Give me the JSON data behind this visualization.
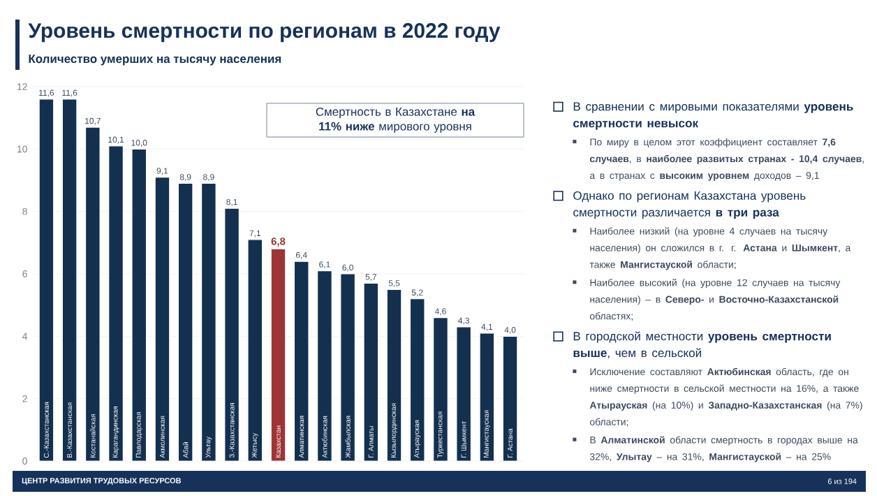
{
  "chart_data": {
    "type": "bar",
    "title": "Уровень смертности по регионам в 2022 году",
    "subtitle": "Количество умерших на тысячу населения",
    "categories": [
      "С.-Казахстанская",
      "В.-Казахстанская",
      "Костанайская",
      "Карагандинская",
      "Павлодарская",
      "Акмолинская",
      "Абай",
      "Ультау",
      "З.-Казахстанская",
      "Жетысу",
      "Казахстан",
      "Алматинская",
      "Актюбинская",
      "Жамбылская",
      "Г. Алматы",
      "Кызылординская",
      "Атырауская",
      "Туркестанская",
      "Г. Шымкент",
      "Мангистауская",
      "Г. Астана"
    ],
    "values": [
      11.6,
      11.6,
      10.7,
      10.1,
      10.0,
      9.1,
      8.9,
      8.9,
      8.1,
      7.1,
      6.8,
      6.4,
      6.1,
      6.0,
      5.7,
      5.5,
      5.2,
      4.6,
      4.3,
      4.1,
      4.0
    ],
    "value_labels": [
      "11,6",
      "11,6",
      "10,7",
      "10,1",
      "10,0",
      "9,1",
      "8,9",
      "8,9",
      "8,1",
      "7,1",
      "6,8",
      "6,4",
      "6,1",
      "6,0",
      "5,7",
      "5,5",
      "5,2",
      "4,6",
      "4,3",
      "4,1",
      "4,0"
    ],
    "colors": [
      "#14304f",
      "#14304f",
      "#14304f",
      "#14304f",
      "#14304f",
      "#14304f",
      "#14304f",
      "#14304f",
      "#14304f",
      "#14304f",
      "#9e3434",
      "#14304f",
      "#14304f",
      "#14304f",
      "#14304f",
      "#14304f",
      "#14304f",
      "#14304f",
      "#14304f",
      "#14304f",
      "#14304f"
    ],
    "ylim": [
      0,
      12
    ],
    "yticks": [
      0,
      2,
      4,
      6,
      8,
      10,
      12
    ],
    "grid": "y",
    "annotations": [
      "Смертность в Казахстане **на 11% ниже** мирового уровня",
      "В сравнении с мировыми показателями **уровень смертности невысок**",
      "По миру в целом этот коэффициент составляет **7,6 случаев**, в **наиболее развитых странах - 10,4 случаев**, а в странах с **высоким уровнем** доходов – 9,1",
      "Однако по регионам Казахстана уровень смертности различается **в три раза**",
      "Наиболее низкий (на уровне 4 случаев на тысячу населения) он сложился в г. г. **Астана** и **Шымкент**, а также **Мангистауской** области;",
      "Наиболее высокий (на уровне 12 случаев на тысячу населения) – в **Северо-** и **Восточно-Казахстанской** областях;",
      "В городской местности **уровень смертности выше**, чем в сельской",
      "Исключение составляют **Актюбинская** область, где он ниже смертности в сельской местности на 16%, а также **Атырауская** (на 10%) и **Западно-Казахстанская** (на 7%) области;",
      "В **Алматинской** области смертность в городах выше на 32%, **Улытау** – на 31%, **Мангистауской** – на 25%",
      "ЦЕНТР РАЗВИТИЯ ТРУДОВЫХ РЕСУРСОВ",
      "6 из 194"
    ]
  }
}
